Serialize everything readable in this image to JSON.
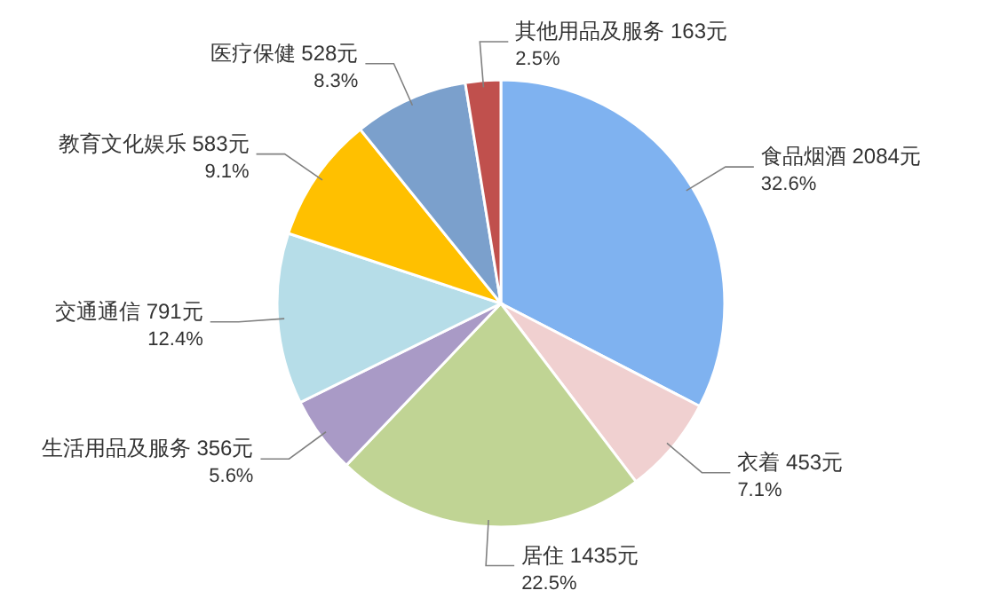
{
  "chart_data": {
    "type": "pie",
    "categories": [
      "食品烟酒",
      "衣着",
      "居住",
      "生活用品及服务",
      "交通通信",
      "教育文化娱乐",
      "医疗保健",
      "其他用品及服务"
    ],
    "values": [
      2084,
      453,
      1435,
      356,
      791,
      583,
      528,
      163
    ],
    "colors": [
      "#7fb2f0",
      "#f0d0d0",
      "#c0d494",
      "#a99ac6",
      "#b6dde8",
      "#ffc000",
      "#7ba0cc",
      "#c0504d"
    ],
    "value_labels": [
      "2084元\n32.6%",
      "453元\n7.1%",
      "1435元\n22.5%",
      "356元\n5.6%",
      "791元\n12.4%",
      "583元\n9.1%",
      "528元\n8.3%",
      "163元\n2.5%"
    ]
  }
}
